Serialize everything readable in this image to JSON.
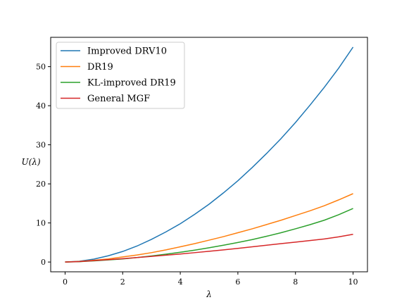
{
  "chart_data": {
    "type": "line",
    "title": "",
    "xlabel": "λ",
    "ylabel": "U(λ)",
    "xlim": [
      -0.5,
      10.5
    ],
    "ylim": [
      -2.5,
      57.5
    ],
    "xticks": [
      0,
      2,
      4,
      6,
      8,
      10
    ],
    "yticks": [
      0,
      10,
      20,
      30,
      40,
      50
    ],
    "grid": false,
    "legend_position": "top-left",
    "x": [
      0,
      0.5,
      1,
      1.5,
      2,
      2.5,
      3,
      3.5,
      4,
      4.5,
      5,
      5.5,
      6,
      6.5,
      7,
      7.5,
      8,
      8.5,
      9,
      9.5,
      10
    ],
    "series": [
      {
        "name": "Improved DRV10",
        "color": "#1f77b4",
        "values": [
          0,
          0.2,
          0.75,
          1.6,
          2.7,
          4.1,
          5.8,
          7.7,
          9.8,
          12.2,
          14.8,
          17.7,
          20.8,
          24.2,
          27.8,
          31.6,
          35.7,
          40.1,
          44.7,
          49.6,
          55.0
        ]
      },
      {
        "name": "DR19",
        "color": "#ff7f0e",
        "values": [
          0,
          0.15,
          0.45,
          0.8,
          1.3,
          1.8,
          2.4,
          3.1,
          3.9,
          4.7,
          5.6,
          6.5,
          7.5,
          8.5,
          9.6,
          10.7,
          11.9,
          13.1,
          14.4,
          15.9,
          17.5
        ]
      },
      {
        "name": "KL-improved DR19",
        "color": "#2ca02c",
        "values": [
          0,
          0.1,
          0.3,
          0.55,
          0.8,
          1.15,
          1.55,
          2.0,
          2.5,
          3.05,
          3.65,
          4.3,
          5.0,
          5.75,
          6.6,
          7.5,
          8.5,
          9.55,
          10.7,
          12.1,
          13.7
        ]
      },
      {
        "name": "General MGF",
        "color": "#d62728",
        "values": [
          0,
          0.12,
          0.35,
          0.6,
          0.85,
          1.15,
          1.45,
          1.75,
          2.05,
          2.4,
          2.75,
          3.1,
          3.5,
          3.9,
          4.3,
          4.7,
          5.1,
          5.5,
          5.9,
          6.45,
          7.1
        ]
      }
    ]
  }
}
